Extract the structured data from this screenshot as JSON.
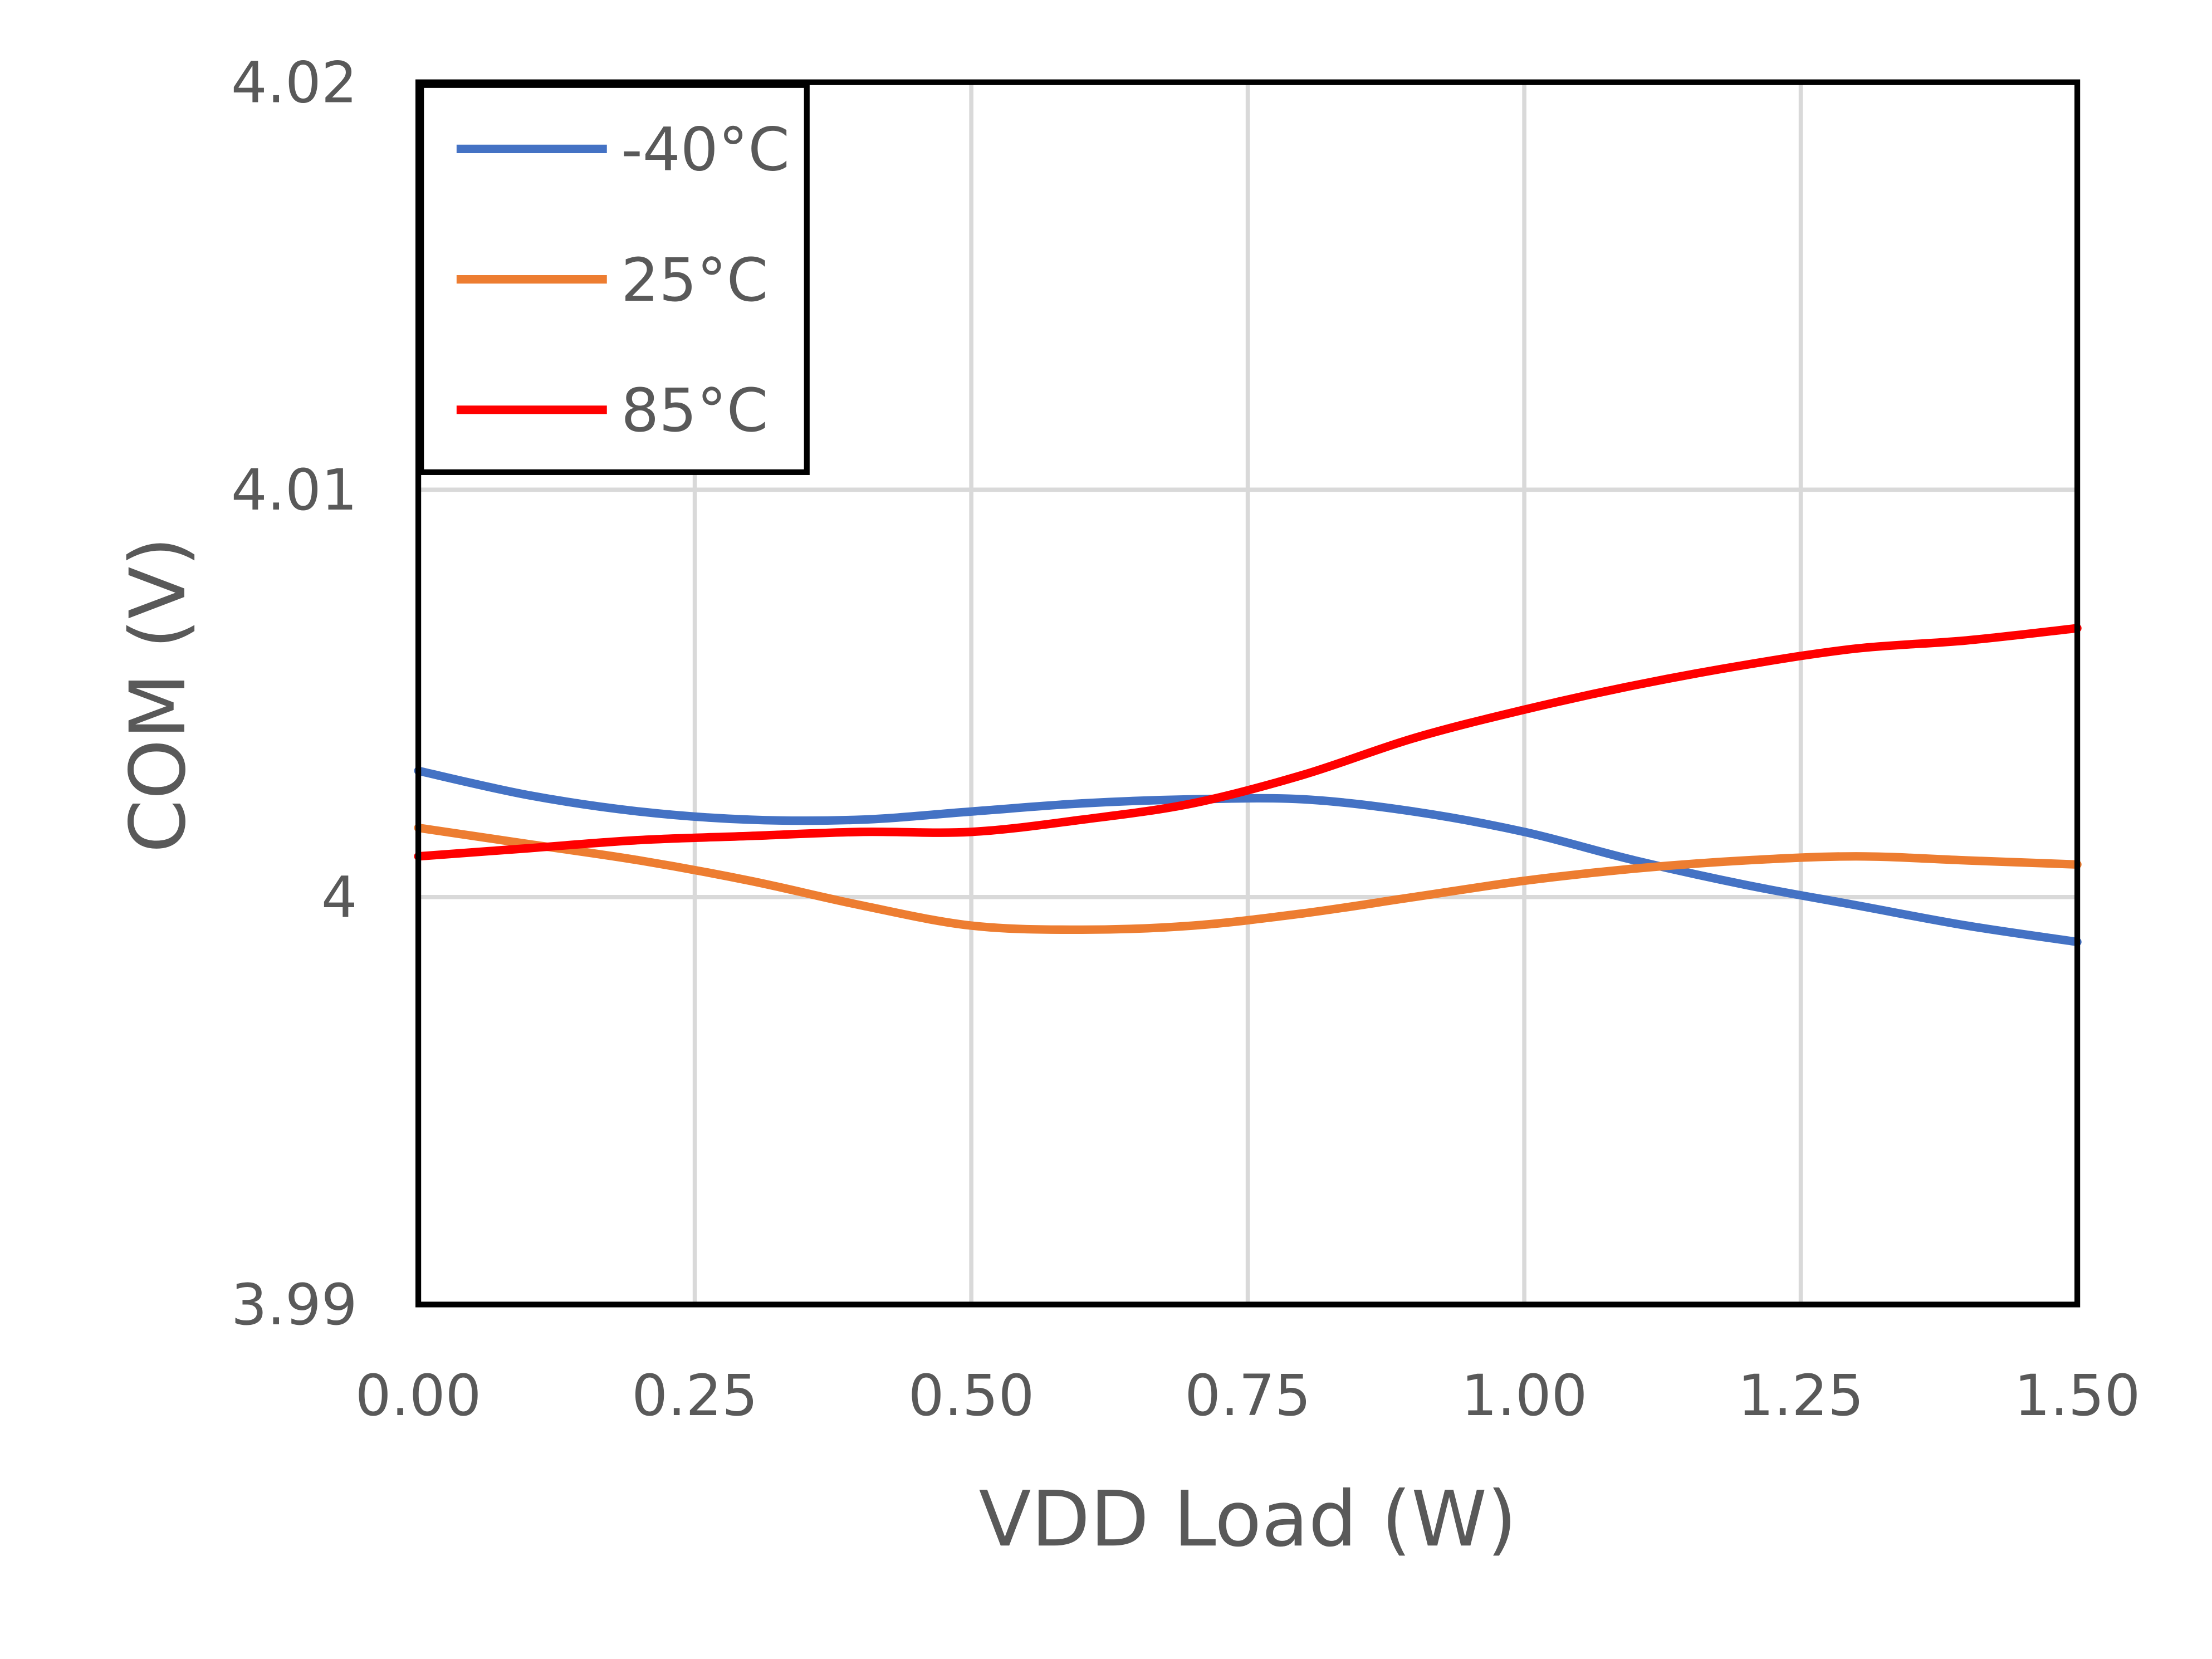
{
  "chart_data": {
    "type": "line",
    "title": "",
    "xlabel": "VDD Load (W)",
    "ylabel": "COM (V)",
    "xlim": [
      0,
      1.5
    ],
    "ylim": [
      3.99,
      4.02
    ],
    "x_ticks": [
      "0.00",
      "0.25",
      "0.50",
      "0.75",
      "1.00",
      "1.25",
      "1.50"
    ],
    "y_ticks": [
      "3.99",
      "4",
      "4.01",
      "4.02"
    ],
    "grid": true,
    "legend_position": "top-left",
    "smooth": true,
    "x": [
      0,
      0.1,
      0.2,
      0.3,
      0.4,
      0.5,
      0.6,
      0.7,
      0.8,
      0.9,
      1.0,
      1.1,
      1.2,
      1.3,
      1.4,
      1.5
    ],
    "series": [
      {
        "name": "-40°C",
        "color": "#4472C4",
        "values": [
          4.0031,
          4.0025,
          4.0021,
          4.0019,
          4.0019,
          4.0021,
          4.0023,
          4.0024,
          4.0024,
          4.0021,
          4.0016,
          4.0009,
          4.0003,
          3.9998,
          3.9993,
          3.9989
        ]
      },
      {
        "name": "25°C",
        "color": "#ED7D31",
        "values": [
          4.0017,
          4.0013,
          4.0009,
          4.0004,
          3.9998,
          3.9993,
          3.9992,
          3.9993,
          3.9996,
          4.0,
          4.0004,
          4.0007,
          4.0009,
          4.001,
          4.0009,
          4.0008
        ]
      },
      {
        "name": "85°C",
        "color": "#FF0000",
        "values": [
          4.001,
          4.0012,
          4.0014,
          4.0015,
          4.0016,
          4.0016,
          4.0019,
          4.0023,
          4.003,
          4.0039,
          4.0046,
          4.0052,
          4.0057,
          4.0061,
          4.0063,
          4.0066
        ]
      }
    ]
  }
}
